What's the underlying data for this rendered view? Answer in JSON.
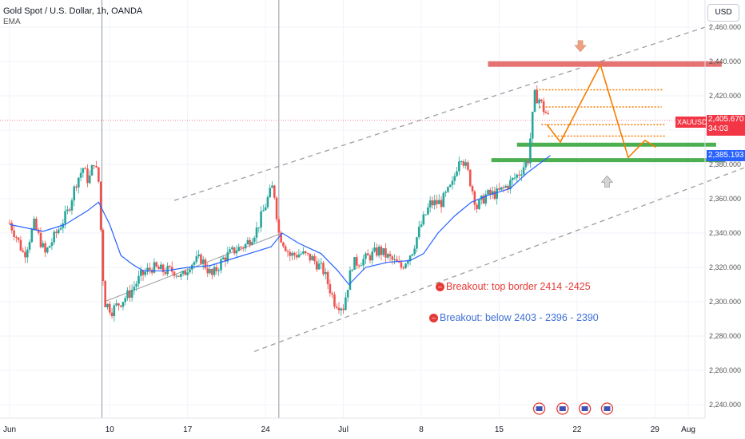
{
  "header": {
    "title": "Gold Spot / U.S. Dollar, 1h, OANDA",
    "indicator": "EMA"
  },
  "currency_button": "USD",
  "price_tags": {
    "symbol": "XAUUSD",
    "last_price": "2,405.670",
    "countdown": "34:03",
    "ema_value": "2,385.193"
  },
  "annotations": {
    "breakout_top": "Breakout:  top border 2414 -2425",
    "breakout_below": "Breakout: below 2403 - 2396 - 2390"
  },
  "colors": {
    "bull": "#26a69a",
    "bear": "#ef5350",
    "ema": "#2962ff",
    "resistance": "#e57373",
    "support": "#4caf50",
    "zigzag": "#f57c00",
    "annotation_red": "#e53935",
    "annotation_blue": "#3f6fd8"
  },
  "chart_data": {
    "type": "candlestick",
    "title": "Gold Spot / U.S. Dollar, 1h, OANDA",
    "ylim": [
      2232,
      2468
    ],
    "y_ticks": [
      "2,460.000",
      "2,440.000",
      "2,420.000",
      "2,400.000",
      "2,380.000",
      "2,360.000",
      "2,340.000",
      "2,320.000",
      "2,300.000",
      "2,280.000",
      "2,260.000",
      "2,240.000"
    ],
    "y_tick_values": [
      2460,
      2440,
      2420,
      2400,
      2380,
      2360,
      2340,
      2320,
      2300,
      2280,
      2260,
      2240
    ],
    "x_ticks": [
      "Jun",
      "10",
      "17",
      "24",
      "Jul",
      "8",
      "15",
      "22",
      "29",
      "Aug"
    ],
    "x_tick_days": [
      0,
      9,
      16,
      23,
      30,
      37,
      44,
      51,
      58,
      61
    ],
    "xlim_days": [
      0,
      62
    ],
    "vertical_markers_days": [
      8.3,
      24.2
    ],
    "price_path": [
      [
        0,
        2346
      ],
      [
        0.6,
        2338
      ],
      [
        1.3,
        2327
      ],
      [
        2.2,
        2345
      ],
      [
        3.2,
        2328
      ],
      [
        4.2,
        2340
      ],
      [
        5.2,
        2352
      ],
      [
        6.0,
        2370
      ],
      [
        6.6,
        2378
      ],
      [
        7.1,
        2370
      ],
      [
        7.6,
        2382
      ],
      [
        8.0,
        2370
      ],
      [
        8.5,
        2300
      ],
      [
        9.2,
        2295
      ],
      [
        10.0,
        2300
      ],
      [
        10.8,
        2305
      ],
      [
        11.8,
        2315
      ],
      [
        12.8,
        2320
      ],
      [
        13.8,
        2318
      ],
      [
        14.8,
        2318
      ],
      [
        15.5,
        2314
      ],
      [
        16.2,
        2322
      ],
      [
        17.2,
        2325
      ],
      [
        18.2,
        2315
      ],
      [
        19.2,
        2325
      ],
      [
        20.2,
        2330
      ],
      [
        21.2,
        2333
      ],
      [
        22.2,
        2342
      ],
      [
        23.2,
        2360
      ],
      [
        23.7,
        2368
      ],
      [
        24.2,
        2340
      ],
      [
        25.2,
        2327
      ],
      [
        26.2,
        2328
      ],
      [
        27.2,
        2325
      ],
      [
        28.2,
        2318
      ],
      [
        29.2,
        2300
      ],
      [
        30.0,
        2297
      ],
      [
        30.8,
        2322
      ],
      [
        32.0,
        2325
      ],
      [
        33.2,
        2330
      ],
      [
        34.2,
        2325
      ],
      [
        35.2,
        2320
      ],
      [
        36.2,
        2330
      ],
      [
        37.0,
        2345
      ],
      [
        37.8,
        2357
      ],
      [
        38.8,
        2358
      ],
      [
        39.8,
        2368
      ],
      [
        40.5,
        2387
      ],
      [
        41.2,
        2375
      ],
      [
        42.0,
        2355
      ],
      [
        42.8,
        2362
      ],
      [
        43.8,
        2363
      ],
      [
        44.8,
        2368
      ],
      [
        45.8,
        2375
      ],
      [
        46.6,
        2383
      ],
      [
        47.2,
        2420
      ],
      [
        47.6,
        2418
      ],
      [
        48.0,
        2412
      ],
      [
        48.6,
        2405.67
      ]
    ],
    "ema_path": [
      [
        0,
        2345
      ],
      [
        3,
        2341
      ],
      [
        5,
        2345
      ],
      [
        7,
        2353
      ],
      [
        8,
        2358
      ],
      [
        9,
        2345
      ],
      [
        10,
        2327
      ],
      [
        11,
        2322
      ],
      [
        12,
        2318
      ],
      [
        14,
        2318
      ],
      [
        16,
        2320
      ],
      [
        18,
        2321
      ],
      [
        20,
        2325
      ],
      [
        22,
        2329
      ],
      [
        23.5,
        2332
      ],
      [
        24.5,
        2340
      ],
      [
        26,
        2334
      ],
      [
        28,
        2328
      ],
      [
        29.5,
        2318
      ],
      [
        30.5,
        2310
      ],
      [
        32,
        2320
      ],
      [
        34,
        2323
      ],
      [
        36,
        2324
      ],
      [
        37.2,
        2328
      ],
      [
        38.5,
        2340
      ],
      [
        40,
        2350
      ],
      [
        41.5,
        2358
      ],
      [
        43,
        2362
      ],
      [
        45,
        2366
      ],
      [
        46.5,
        2375
      ],
      [
        48.6,
        2385.193
      ]
    ],
    "channel_upper": [
      [
        14.8,
        2359
      ],
      [
        63,
        2461
      ]
    ],
    "channel_lower": [
      [
        22,
        2271
      ],
      [
        66,
        2378
      ]
    ],
    "inner_trendline": [
      [
        8.5,
        2300
      ],
      [
        24.5,
        2340
      ]
    ],
    "resistance_band": {
      "price": 2438.5,
      "x_days": [
        43,
        64
      ]
    },
    "support_lines": [
      {
        "price": 2391.5,
        "x_days": [
          45.6,
          63.5
        ]
      },
      {
        "price": 2382.5,
        "x_days": [
          43.3,
          64.3
        ]
      }
    ],
    "dotted_levels": [
      {
        "price": 2423.5,
        "x_days": [
          47.3,
          58.8
        ]
      },
      {
        "price": 2413.5,
        "x_days": [
          47.6,
          58.6
        ]
      },
      {
        "price": 2403.2,
        "x_days": [
          47.8,
          59.0
        ]
      },
      {
        "price": 2396.5,
        "x_days": [
          48.4,
          59.0
        ]
      }
    ],
    "zigzag": [
      [
        48.3,
        2403.2
      ],
      [
        49.5,
        2393
      ],
      [
        53.1,
        2438
      ],
      [
        55.6,
        2384
      ],
      [
        57.1,
        2394
      ],
      [
        58.1,
        2390
      ]
    ],
    "arrows": [
      {
        "direction": "down",
        "day": 51.3,
        "price": 2448
      },
      {
        "direction": "up",
        "day": 53.7,
        "price": 2371
      }
    ],
    "last_price": 2405.67,
    "ema_last": 2385.193
  }
}
